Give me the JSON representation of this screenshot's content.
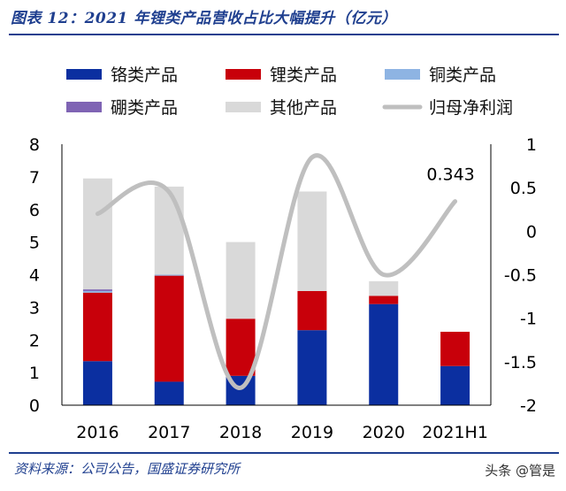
{
  "header": {
    "title": "图表 12：2021 年锂类产品营收占比大幅提升（亿元）"
  },
  "footer": {
    "source": "资料来源：公司公告，国盛证券研究所",
    "watermark": "头条 @管是"
  },
  "chart_data": {
    "type": "bar",
    "stacked": true,
    "categories": [
      "2016",
      "2017",
      "2018",
      "2019",
      "2020",
      "2021H1"
    ],
    "series": [
      {
        "name": "铬类产品",
        "color": "#0b2fa0",
        "axis": "left",
        "values": [
          1.35,
          0.72,
          0.9,
          2.3,
          3.1,
          1.2
        ]
      },
      {
        "name": "锂类产品",
        "color": "#c8000a",
        "axis": "left",
        "values": [
          2.1,
          3.25,
          1.75,
          1.2,
          0.25,
          1.05
        ]
      },
      {
        "name": "铜类产品",
        "color": "#8eb4e3",
        "axis": "left",
        "values": [
          0.05,
          0.03,
          0,
          0,
          0,
          0
        ]
      },
      {
        "name": "硼类产品",
        "color": "#7f64b4",
        "axis": "left",
        "values": [
          0.05,
          0,
          0,
          0,
          0,
          0
        ]
      },
      {
        "name": "其他产品",
        "color": "#d9d9d9",
        "axis": "left",
        "values": [
          3.4,
          2.7,
          2.35,
          3.05,
          0.45,
          0
        ]
      },
      {
        "name": "归母净利润",
        "color": "#bfbfbf",
        "axis": "right",
        "type": "line",
        "values": [
          0.2,
          0.45,
          -1.8,
          0.85,
          -0.5,
          0.343
        ]
      }
    ],
    "y_left": {
      "range": [
        0,
        8
      ],
      "ticks": [
        "0",
        "1",
        "2",
        "3",
        "4",
        "5",
        "6",
        "7",
        "8"
      ]
    },
    "y_right": {
      "range": [
        -2,
        1
      ],
      "ticks": [
        "-2",
        "-1.5",
        "-1",
        "-0.5",
        "0",
        "0.5",
        "1"
      ]
    },
    "annotation": {
      "text": "0.343",
      "category": "2021H1",
      "series": "归母净利润"
    },
    "legend_position": "top"
  }
}
